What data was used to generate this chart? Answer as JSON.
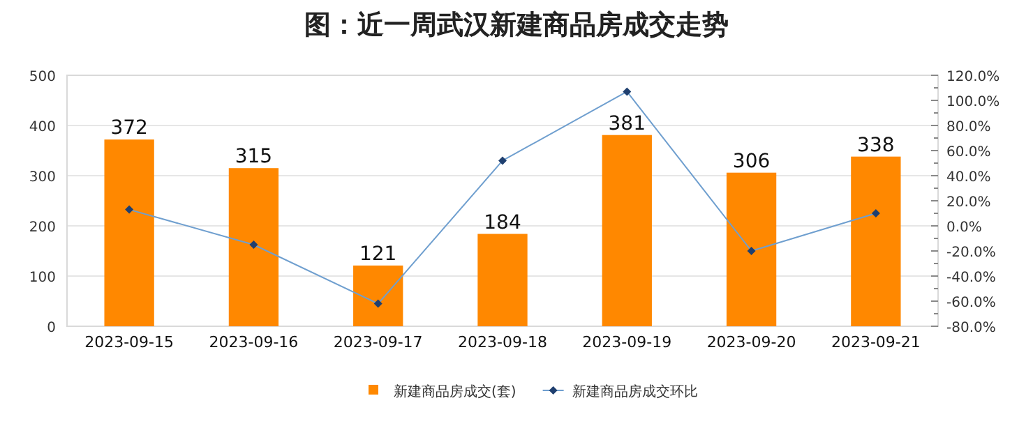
{
  "chart_data": {
    "type": "bar",
    "title": "图：近一周武汉新建商品房成交走势",
    "categories": [
      "2023-09-15",
      "2023-09-16",
      "2023-09-17",
      "2023-09-18",
      "2023-09-19",
      "2023-09-20",
      "2023-09-21"
    ],
    "series": [
      {
        "name": "新建商品房成交(套)",
        "color": "#ff8800",
        "values": [
          372,
          315,
          121,
          184,
          381,
          306,
          338
        ],
        "value_labels": [
          "372",
          "315",
          "121",
          "184",
          "381",
          "306",
          "338"
        ]
      },
      {
        "name": "新建商品房成交环比",
        "type": "line",
        "axis": "y2",
        "color": "#6f9fcf",
        "values": [
          13,
          -15,
          -62,
          52,
          107,
          -20,
          10
        ]
      }
    ],
    "ylim": [
      0,
      500
    ],
    "yticks": [
      0,
      100,
      200,
      300,
      400,
      500
    ],
    "y2lim": [
      -80,
      120
    ],
    "y2ticks": [
      {
        "value": -80,
        "label": "-80.0%"
      },
      {
        "value": -70,
        "label": null
      },
      {
        "value": -60,
        "label": "-60.0%"
      },
      {
        "value": -50,
        "label": null
      },
      {
        "value": -40,
        "label": "-40.0%"
      },
      {
        "value": -30,
        "label": null
      },
      {
        "value": -20,
        "label": "-20.0%"
      },
      {
        "value": -10,
        "label": null
      },
      {
        "value": 0,
        "label": "0.0%"
      },
      {
        "value": 10,
        "label": null
      },
      {
        "value": 20,
        "label": "20.0%"
      },
      {
        "value": 30,
        "label": null
      },
      {
        "value": 40,
        "label": "40.0%"
      },
      {
        "value": 50,
        "label": null
      },
      {
        "value": 60,
        "label": "60.0%"
      },
      {
        "value": 70,
        "label": null
      },
      {
        "value": 80,
        "label": "80.0%"
      },
      {
        "value": 90,
        "label": null
      },
      {
        "value": 100,
        "label": "100.0%"
      },
      {
        "value": 110,
        "label": null
      },
      {
        "value": 120,
        "label": "120.0%"
      }
    ],
    "grid": "y",
    "legend": "bottom",
    "marker": "diamond",
    "line_style": "solid"
  }
}
